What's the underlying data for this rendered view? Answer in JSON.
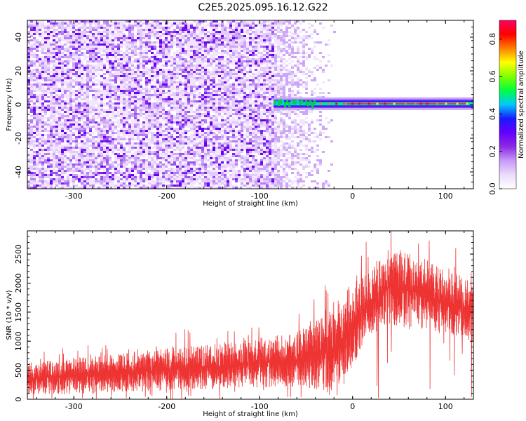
{
  "title": "C2E5.2025.095.16.12.G22",
  "chart_data": [
    {
      "type": "heatmap",
      "xlabel": "Height of straight line (km)",
      "ylabel": "Frequency (Hz)",
      "xlim": [
        -350,
        130
      ],
      "ylim": [
        -50,
        50
      ],
      "xticks": [
        -300,
        -200,
        -100,
        0,
        100
      ],
      "xtick_labels": [
        "-300",
        "-200",
        "-100",
        "0",
        "100"
      ],
      "yticks": [
        -40,
        -20,
        0,
        20,
        40
      ],
      "ytick_labels": [
        "-40",
        "-20",
        "0",
        "20",
        "40"
      ],
      "noise_region_km": [
        -350,
        -85
      ],
      "noise_fade_km": [
        -85,
        -20
      ],
      "signal_line": {
        "frequency_hz": 0.5,
        "start_km": -85,
        "end_km": 130,
        "peak_amplitude": 0.9
      },
      "colorbar": {
        "label": "Normalized spectral amplitude",
        "range": [
          0.0,
          0.9
        ],
        "ticks": [
          0.0,
          0.2,
          0.4,
          0.6,
          0.8
        ],
        "tick_labels": [
          "0.0",
          "0.2",
          "0.4",
          "0.6",
          "0.8"
        ],
        "colors": [
          "#ffffff",
          "#ecdcfb",
          "#c79af7",
          "#8a2be2",
          "#6400ff",
          "#1a1aff",
          "#00c8ff",
          "#00ff40",
          "#80ff00",
          "#ffff00",
          "#ff8000",
          "#ff0000",
          "#ff0060"
        ]
      }
    },
    {
      "type": "line",
      "xlabel": "Height of straight line (km)",
      "ylabel": "SNR (10 * v/v)",
      "xlim": [
        -350,
        130
      ],
      "ylim": [
        0,
        2900
      ],
      "xticks": [
        -300,
        -200,
        -100,
        0,
        100
      ],
      "xtick_labels": [
        "-300",
        "-200",
        "-100",
        "0",
        "100"
      ],
      "yticks": [
        0,
        500,
        1000,
        1500,
        2000,
        2500
      ],
      "ytick_labels": [
        "0",
        "500",
        "1000",
        "1500",
        "2000",
        "2500"
      ],
      "color": "#ee3333",
      "envelope": {
        "x": [
          -350,
          -300,
          -250,
          -200,
          -150,
          -100,
          -60,
          -40,
          -20,
          -10,
          0,
          20,
          40,
          60,
          80,
          100,
          130
        ],
        "lower": [
          80,
          90,
          110,
          150,
          180,
          200,
          200,
          150,
          100,
          200,
          500,
          1100,
          1300,
          1200,
          1200,
          1100,
          1000
        ],
        "upper": [
          650,
          720,
          780,
          880,
          950,
          1050,
          1150,
          1350,
          1600,
          1850,
          2000,
          2300,
          2600,
          2550,
          2400,
          2200,
          2100
        ]
      }
    }
  ]
}
